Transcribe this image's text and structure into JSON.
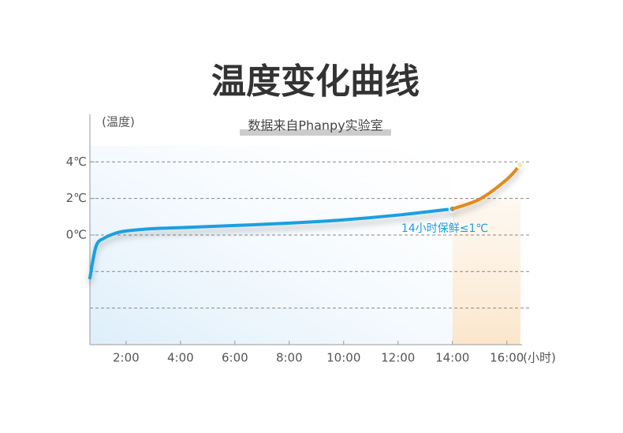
{
  "chart_data": {
    "type": "line",
    "title": "温度变化曲线",
    "subtitle": "数据来自Phanpy实验室",
    "y_label": "(温度)",
    "x_label": "(小时)",
    "annotation": "14小时保鲜≤1℃",
    "xlim": [
      0.67,
      16.85
    ],
    "ylim": [
      -6,
      6.6
    ],
    "xticks": [
      {
        "value": 2,
        "label": "2:00"
      },
      {
        "value": 4,
        "label": "4:00"
      },
      {
        "value": 6,
        "label": "6:00"
      },
      {
        "value": 8,
        "label": "8:00"
      },
      {
        "value": 10,
        "label": "10:00"
      },
      {
        "value": 12,
        "label": "12:00"
      },
      {
        "value": 14,
        "label": "14:00"
      },
      {
        "value": 16,
        "label": "16:00"
      }
    ],
    "yticks": [
      {
        "value": 0,
        "label": "0℃"
      },
      {
        "value": 2,
        "label": "2℃"
      },
      {
        "value": 4,
        "label": "4℃"
      }
    ],
    "ygrid": [
      -4,
      -2,
      0,
      2,
      4
    ],
    "grid": true,
    "series": [
      {
        "color": "#1a9fe0",
        "x": [
          0.67,
          0.9,
          1.2,
          1.6,
          2,
          3,
          4,
          6,
          8,
          10,
          12,
          14
        ],
        "values": [
          -2.35,
          -0.6,
          -0.17,
          0.09,
          0.22,
          0.35,
          0.4,
          0.52,
          0.65,
          0.83,
          1.09,
          1.43
        ]
      },
      {
        "color": "#e08a1a",
        "x": [
          14,
          15,
          16,
          16.48
        ],
        "values": [
          1.43,
          1.96,
          3.04,
          3.83
        ]
      }
    ]
  }
}
